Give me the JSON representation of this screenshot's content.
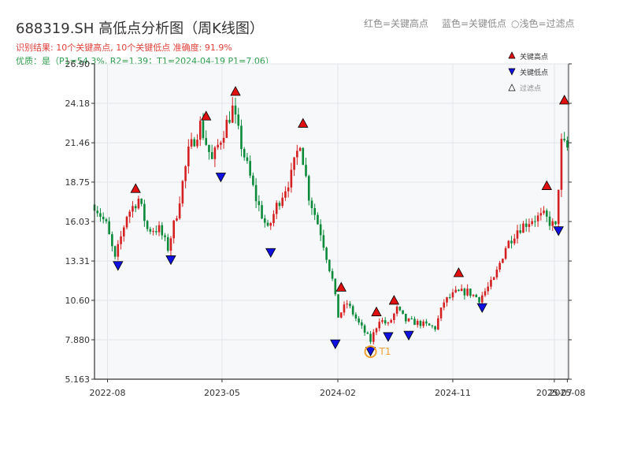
{
  "header": {
    "title": "688319.SH 高低点分析图（周K线图）",
    "result_line": "识别结果: 10个关键高点, 10个关键低点 准确度: 91.9%",
    "quality_line": "优质：是（P1=54.3%, R2=1.39；T1=2024-04-19 P1=7.06）"
  },
  "top_legend": {
    "red": "红色=关键高点",
    "blue": "蓝色=关键低点",
    "filtered": "○浅色=过滤点"
  },
  "colors": {
    "up": "#d42020",
    "down": "#0b8a3a",
    "high_marker": "#e01010",
    "low_marker": "#1010e0",
    "t1": "#f0a030",
    "plot_bg": "#f7f8fa"
  },
  "chart_data": {
    "type": "candlestick",
    "title": "688319.SH 高低点分析图（周K线图）",
    "ylim": [
      5.163,
      26.9
    ],
    "yticks": [
      "5.163",
      "7.880",
      "10.60",
      "13.31",
      "16.03",
      "18.75",
      "21.46",
      "24.18",
      "26.90"
    ],
    "xlim": [
      "2022-07-01",
      "2025-08-04"
    ],
    "xticks": [
      "2022-08",
      "2023-05",
      "2024-02",
      "2024-11",
      "2025-07",
      "2025-08"
    ],
    "price_path": [
      [
        "2022-07-01",
        17.2
      ],
      [
        "2022-07-29",
        15.8
      ],
      [
        "2022-08-19",
        13.4
      ],
      [
        "2022-09-16",
        16.5
      ],
      [
        "2022-10-14",
        17.6
      ],
      [
        "2022-11-04",
        15.5
      ],
      [
        "2022-12-02",
        15.5
      ],
      [
        "2022-12-23",
        14.2
      ],
      [
        "2023-01-13",
        16.6
      ],
      [
        "2023-02-10",
        20.8
      ],
      [
        "2023-03-10",
        22.7
      ],
      [
        "2023-04-07",
        20.2
      ],
      [
        "2023-05-05",
        22.3
      ],
      [
        "2023-05-26",
        23.8
      ],
      [
        "2023-06-16",
        21.3
      ],
      [
        "2023-07-21",
        17.6
      ],
      [
        "2023-08-18",
        15.4
      ],
      [
        "2023-09-08",
        17.1
      ],
      [
        "2023-10-13",
        19.2
      ],
      [
        "2023-11-03",
        21.6
      ],
      [
        "2023-11-24",
        17.8
      ],
      [
        "2023-12-22",
        15.3
      ],
      [
        "2024-01-19",
        12.0
      ],
      [
        "2024-02-02",
        9.5
      ],
      [
        "2024-02-23",
        10.4
      ],
      [
        "2024-03-22",
        9.0
      ],
      [
        "2024-04-19",
        7.8
      ],
      [
        "2024-05-10",
        9.3
      ],
      [
        "2024-05-31",
        8.9
      ],
      [
        "2024-06-21",
        10.0
      ],
      [
        "2024-07-12",
        9.2
      ],
      [
        "2024-08-16",
        9.0
      ],
      [
        "2024-09-20",
        8.7
      ],
      [
        "2024-10-11",
        10.5
      ],
      [
        "2024-11-08",
        11.1
      ],
      [
        "2024-12-06",
        11.2
      ],
      [
        "2025-01-03",
        10.7
      ],
      [
        "2025-02-07",
        12.0
      ],
      [
        "2025-03-07",
        14.3
      ],
      [
        "2025-04-04",
        15.5
      ],
      [
        "2025-05-09",
        16.2
      ],
      [
        "2025-06-06",
        16.4
      ],
      [
        "2025-07-04",
        15.6
      ],
      [
        "2025-07-18",
        21.4
      ],
      [
        "2025-08-04",
        21.0
      ]
    ],
    "key_highs": [
      {
        "date": "2022-10-07",
        "value": 18.3
      },
      {
        "date": "2023-03-24",
        "value": 23.3
      },
      {
        "date": "2023-06-02",
        "value": 25.0
      },
      {
        "date": "2023-11-10",
        "value": 22.8
      },
      {
        "date": "2024-02-09",
        "value": 11.5
      },
      {
        "date": "2024-05-03",
        "value": 9.8
      },
      {
        "date": "2024-06-14",
        "value": 10.6
      },
      {
        "date": "2024-11-15",
        "value": 12.5
      },
      {
        "date": "2025-06-13",
        "value": 18.5
      },
      {
        "date": "2025-07-25",
        "value": 24.4
      }
    ],
    "key_lows": [
      {
        "date": "2022-08-26",
        "value": 13.0
      },
      {
        "date": "2022-12-30",
        "value": 13.4
      },
      {
        "date": "2023-04-28",
        "value": 19.1
      },
      {
        "date": "2023-08-25",
        "value": 13.9
      },
      {
        "date": "2024-01-26",
        "value": 7.6
      },
      {
        "date": "2024-04-19",
        "value": 7.1
      },
      {
        "date": "2024-05-31",
        "value": 8.1
      },
      {
        "date": "2024-07-19",
        "value": 8.2
      },
      {
        "date": "2025-01-10",
        "value": 10.1
      },
      {
        "date": "2025-07-11",
        "value": 15.4
      }
    ],
    "t1": {
      "label": "T1",
      "date": "2024-04-19",
      "value": 7.06
    },
    "inner_legend": {
      "high": "关键高点",
      "low": "关键低点",
      "filtered": "过滤点"
    },
    "legend_position": "top-right",
    "grid": true
  }
}
